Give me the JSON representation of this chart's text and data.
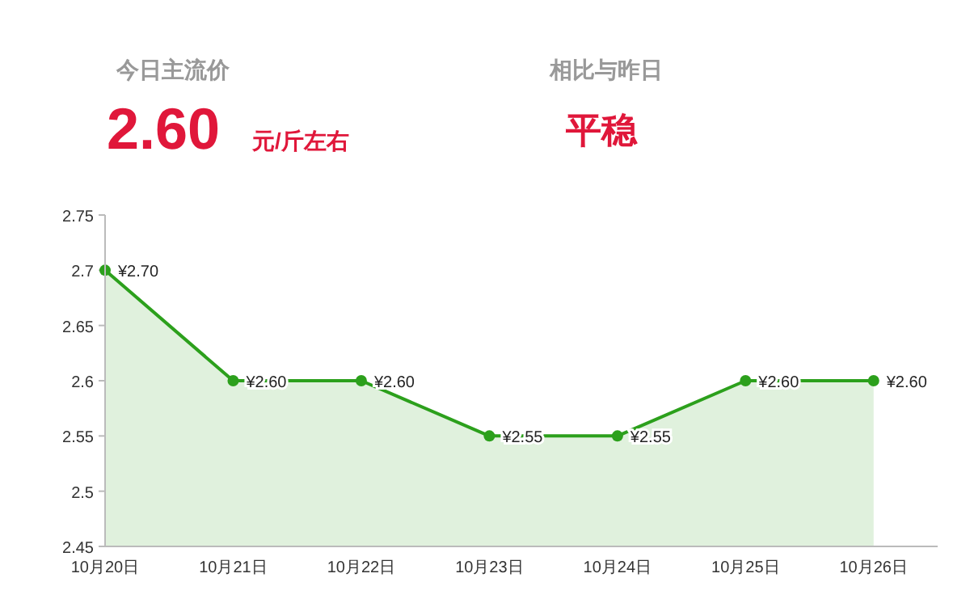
{
  "chart_data": [
    {
      "type": "other",
      "annotations": [
        "今日主流价",
        "2.60",
        "元/斤左右",
        "相比与昨日",
        "平稳"
      ]
    },
    {
      "type": "area",
      "categories": [
        "10月20日",
        "10月21日",
        "10月22日",
        "10月23日",
        "10月24日",
        "10月25日",
        "10月26日"
      ],
      "series": [
        {
          "color": "#2ca01c",
          "values": [
            2.7,
            2.6,
            2.6,
            2.55,
            2.55,
            2.6,
            2.6
          ],
          "value_labels": [
            "¥2.70",
            "¥2.60",
            "¥2.60",
            "¥2.55",
            "¥2.55",
            "¥2.60",
            "¥2.60"
          ]
        }
      ],
      "ylim": [
        2.45,
        2.75
      ],
      "yticks": [
        2.45,
        2.5,
        2.55,
        2.6,
        2.65,
        2.7,
        2.75
      ],
      "marker": "circle"
    }
  ]
}
